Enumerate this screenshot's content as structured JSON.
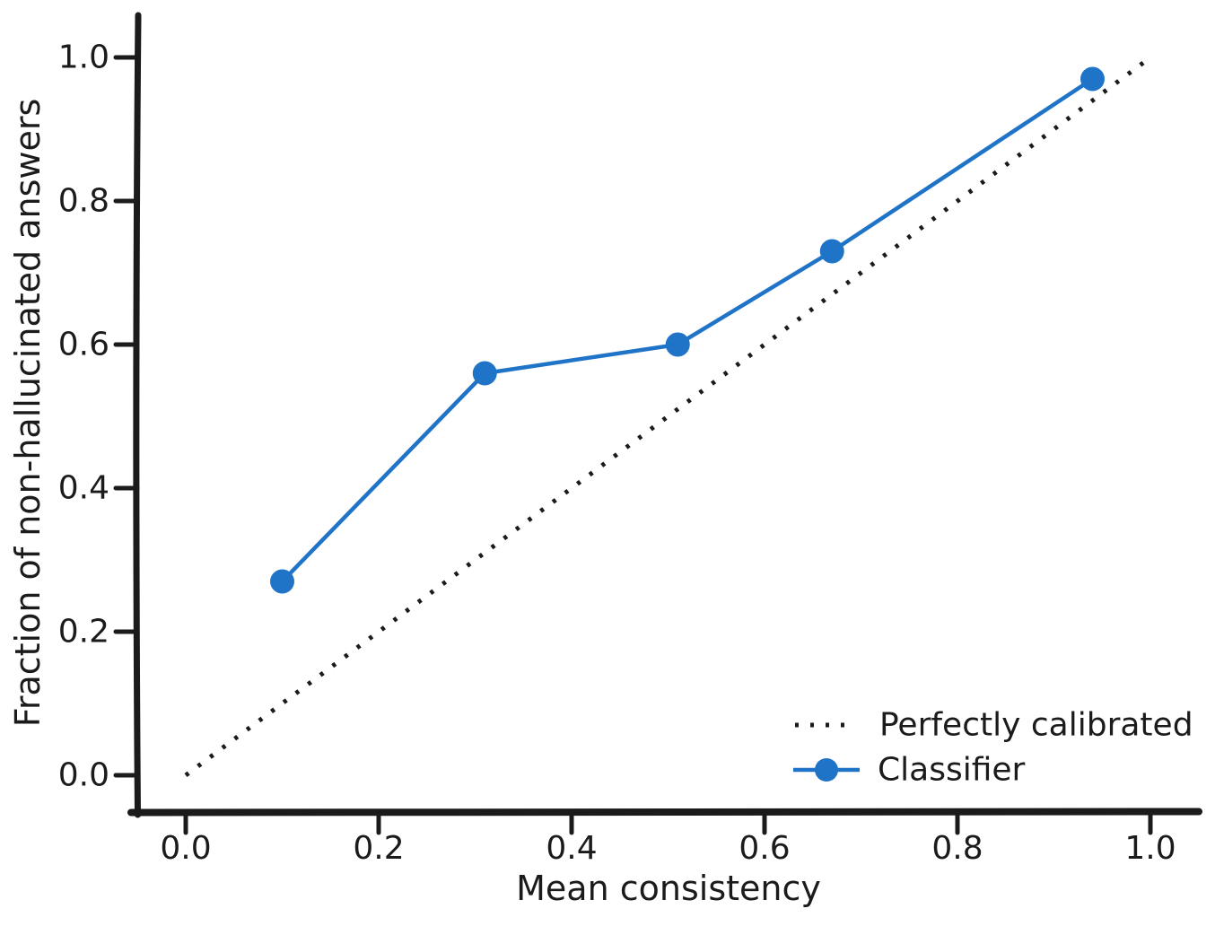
{
  "figure": {
    "background": "#ffffff",
    "ink_color": "#1b1b1b"
  },
  "chart_data": {
    "type": "line",
    "title": "",
    "xlabel": "Mean consistency",
    "ylabel": "Fraction of non-hallucinated answers",
    "xlim": [
      0.0,
      1.0
    ],
    "ylim": [
      0.0,
      1.0
    ],
    "x_ticks": [
      "0.0",
      "0.2",
      "0.4",
      "0.6",
      "0.8",
      "1.0"
    ],
    "y_ticks": [
      "0.0",
      "0.2",
      "0.4",
      "0.6",
      "0.8",
      "1.0"
    ],
    "grid": false,
    "legend_position": "lower-right",
    "series": [
      {
        "name": "Perfectly calibrated",
        "style": "dotted-reference",
        "color": "#1b1b1b",
        "x": [
          0.0,
          1.0
        ],
        "y": [
          0.0,
          1.0
        ]
      },
      {
        "name": "Classifier",
        "style": "line-with-markers",
        "color": "#2074C8",
        "x": [
          0.1,
          0.31,
          0.51,
          0.67,
          0.94
        ],
        "y": [
          0.27,
          0.56,
          0.6,
          0.73,
          0.97
        ]
      }
    ]
  }
}
